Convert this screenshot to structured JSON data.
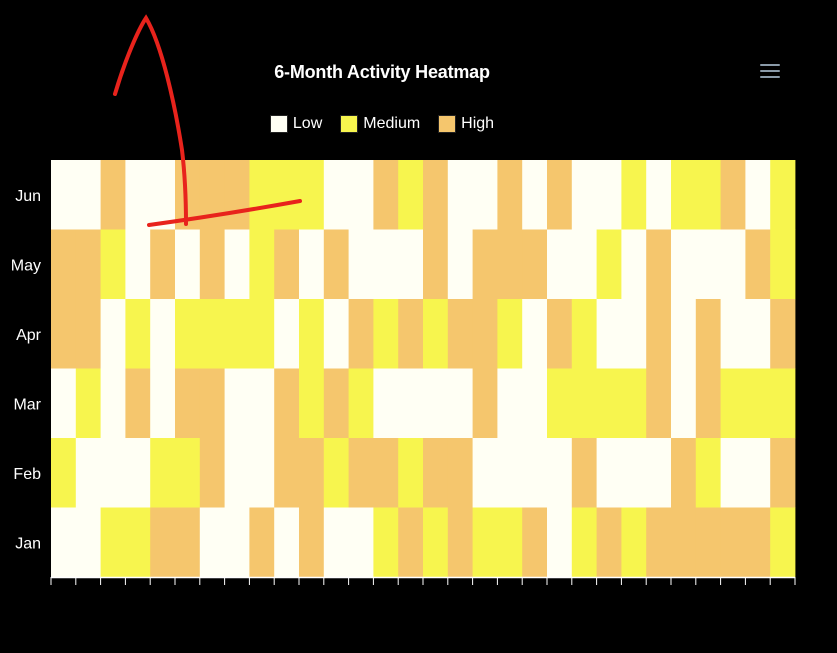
{
  "title": "6-Month Activity Heatmap",
  "menu": {
    "icon": "hamburger-menu-icon"
  },
  "legend": [
    {
      "label": "Low",
      "color": "#fffff4"
    },
    {
      "label": "Medium",
      "color": "#f7f54e"
    },
    {
      "label": "High",
      "color": "#f5c66d"
    }
  ],
  "chart_data": {
    "type": "heatmap",
    "title": "6-Month Activity Heatmap",
    "rows": [
      "Jun",
      "May",
      "Apr",
      "Mar",
      "Feb",
      "Jan"
    ],
    "columns": 30,
    "levels": [
      "Low",
      "Medium",
      "High"
    ],
    "values": [
      [
        0,
        0,
        2,
        0,
        0,
        2,
        2,
        2,
        1,
        1,
        1,
        0,
        0,
        2,
        1,
        2,
        0,
        0,
        2,
        0,
        2,
        0,
        0,
        1,
        0,
        1,
        1,
        2,
        0,
        1
      ],
      [
        2,
        2,
        1,
        0,
        2,
        0,
        2,
        0,
        1,
        2,
        0,
        2,
        0,
        0,
        0,
        2,
        0,
        2,
        2,
        2,
        0,
        0,
        1,
        0,
        2,
        0,
        0,
        0,
        2,
        1
      ],
      [
        2,
        2,
        0,
        1,
        0,
        1,
        1,
        1,
        1,
        0,
        1,
        0,
        2,
        1,
        2,
        1,
        2,
        2,
        1,
        0,
        2,
        1,
        0,
        0,
        2,
        0,
        2,
        0,
        0,
        2
      ],
      [
        0,
        1,
        0,
        2,
        0,
        2,
        2,
        0,
        0,
        2,
        1,
        2,
        1,
        0,
        0,
        0,
        0,
        2,
        0,
        0,
        1,
        1,
        1,
        1,
        2,
        0,
        2,
        1,
        1,
        1
      ],
      [
        1,
        0,
        0,
        0,
        1,
        1,
        2,
        0,
        0,
        2,
        2,
        1,
        2,
        2,
        1,
        2,
        2,
        0,
        0,
        0,
        0,
        2,
        0,
        0,
        0,
        2,
        1,
        0,
        0,
        2
      ],
      [
        0,
        0,
        1,
        1,
        2,
        2,
        0,
        0,
        2,
        0,
        2,
        0,
        0,
        1,
        2,
        1,
        2,
        1,
        1,
        2,
        0,
        1,
        2,
        1,
        2,
        2,
        2,
        2,
        2,
        1
      ]
    ],
    "grid": false,
    "legend_position": "top-center",
    "annotations": [
      "red freehand arrow pointing up",
      "red freehand line"
    ]
  }
}
